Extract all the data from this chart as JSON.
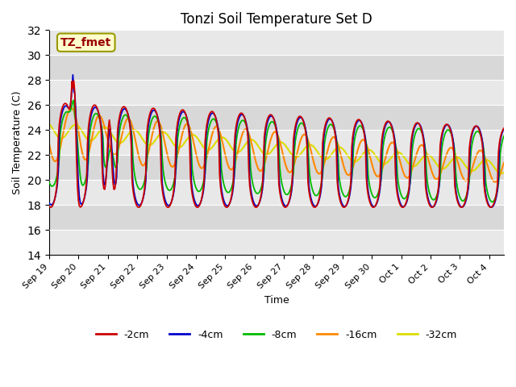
{
  "title": "Tonzi Soil Temperature Set D",
  "xlabel": "Time",
  "ylabel": "Soil Temperature (C)",
  "ylim": [
    14,
    32
  ],
  "yticks": [
    14,
    16,
    18,
    20,
    22,
    24,
    26,
    28,
    30,
    32
  ],
  "colors": {
    "-2cm": "#cc0000",
    "-4cm": "#0000cc",
    "-8cm": "#00bb00",
    "-16cm": "#ff8800",
    "-32cm": "#dddd00"
  },
  "legend_labels": [
    "-2cm",
    "-4cm",
    "-8cm",
    "-16cm",
    "-32cm"
  ],
  "annotation_text": "TZ_fmet",
  "annotation_bg": "#ffffcc",
  "annotation_border": "#999900",
  "annotation_text_color": "#990000",
  "plot_bg": "#e8e8e8",
  "band_colors": [
    "#e0e0e0",
    "#d0d0d0"
  ],
  "n_days": 15.5,
  "n_points": 500
}
